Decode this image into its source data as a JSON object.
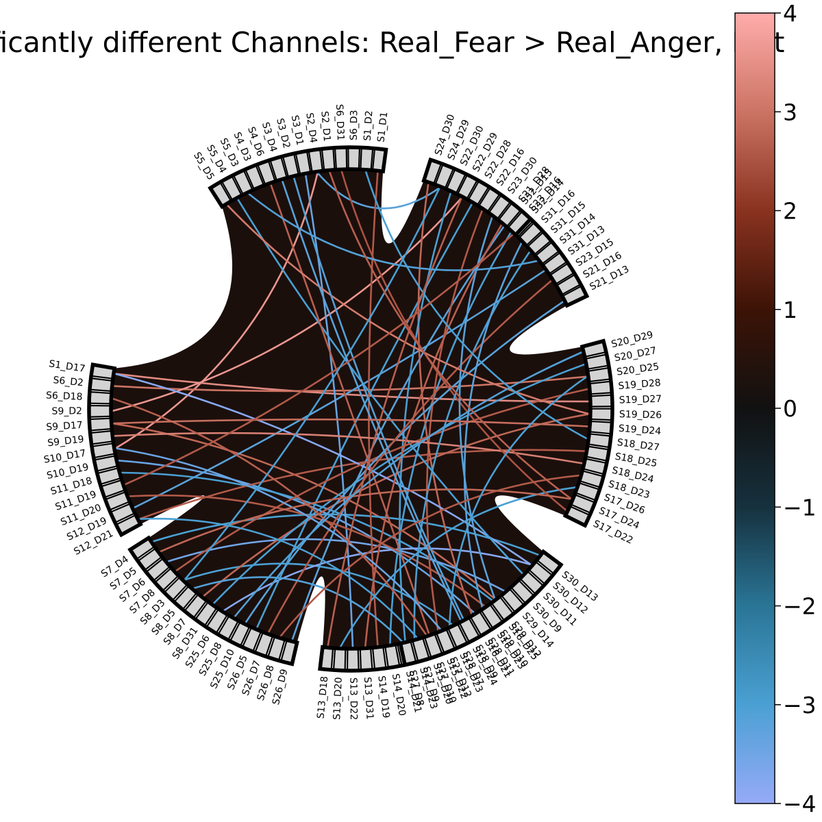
{
  "title": "Significantly different Channels: Real_Fear > Real_Anger, Left",
  "colorbar": {
    "min": -4,
    "max": 4,
    "ticks": [
      4,
      3,
      2,
      1,
      0,
      -1,
      -2,
      -3,
      -4
    ],
    "tick_labels": [
      "4",
      "3",
      "2",
      "1",
      "0",
      "−1",
      "−2",
      "−3",
      "−4"
    ],
    "colormap": [
      {
        "v": -4,
        "color": "#96aaf8"
      },
      {
        "v": -3,
        "color": "#4aa0d3"
      },
      {
        "v": -2,
        "color": "#2a7596"
      },
      {
        "v": -1,
        "color": "#16313e"
      },
      {
        "v": 0,
        "color": "#111111"
      },
      {
        "v": 1,
        "color": "#3c1306"
      },
      {
        "v": 2,
        "color": "#8a3220"
      },
      {
        "v": 3,
        "color": "#cc7464"
      },
      {
        "v": 4,
        "color": "#ffacab"
      }
    ]
  },
  "chart_data": {
    "type": "chord",
    "background_color": "#1b0f0c",
    "groups": [
      {
        "name": "group-1",
        "labels": [
          "S1_D1",
          "S1_D2",
          "S6_D3",
          "S6_D31",
          "S2_D1",
          "S2_D4",
          "S3_D1",
          "S3_D2",
          "S3_D4",
          "S4_D6",
          "S4_D3",
          "S5_D3",
          "S5_D4",
          "S5_D5"
        ]
      },
      {
        "name": "group-2",
        "labels": [
          "S1_D17",
          "S6_D2",
          "S6_D18",
          "S9_D2",
          "S9_D17",
          "S9_D19",
          "S10_D17",
          "S10_D19",
          "S11_D18",
          "S11_D19",
          "S11_D20",
          "S12_D19",
          "S12_D21"
        ]
      },
      {
        "name": "group-3",
        "labels": [
          "S7_D4",
          "S7_D5",
          "S7_D6",
          "S7_D8",
          "S8_D3",
          "S8_D5",
          "S8_D7",
          "S8_D31",
          "S25_D6",
          "S25_D8",
          "S25_D10",
          "S26_D5",
          "S26_D7",
          "S26_D8",
          "S26_D9"
        ]
      },
      {
        "name": "group-4",
        "labels": [
          "S13_D18",
          "S13_D20",
          "S13_D22",
          "S13_D31",
          "S14_D19",
          "S14_D20",
          "S14_D21",
          "S14_D23",
          "S15_D20",
          "S15_D22",
          "S15_D23",
          "S15_D24",
          "S16_D21",
          "S16_D23",
          "S16_D25"
        ]
      },
      {
        "name": "group-5",
        "labels": [
          "S30_D13",
          "S30_D12",
          "S30_D11",
          "S30_D9",
          "S29_D14",
          "S29_D12",
          "S29_D10",
          "S28_D11",
          "S28_D9",
          "S28_D7",
          "S27_D12",
          "S27_D10",
          "S27_D9",
          "S27_D8"
        ]
      },
      {
        "name": "group-6",
        "labels": [
          "S20_D29",
          "S20_D27",
          "S20_D25",
          "S19_D28",
          "S19_D27",
          "S19_D26",
          "S19_D24",
          "S18_D27",
          "S18_D25",
          "S18_D24",
          "S18_D23",
          "S17_D26",
          "S17_D24",
          "S17_D22"
        ]
      },
      {
        "name": "group-7",
        "labels": [
          "S32_D15",
          "S32_D14",
          "S31_D16",
          "S31_D15",
          "S31_D14",
          "S31_D13",
          "S23_D15",
          "S21_D16",
          "S21_D13"
        ]
      },
      {
        "name": "group-8",
        "labels": [
          "S24_D30",
          "S24_D29",
          "S22_D30",
          "S22_D29",
          "S22_D28",
          "S22_D16",
          "S23_D30",
          "S21_D28",
          "S23_D16"
        ]
      }
    ],
    "links": [
      {
        "source": "S2_D4",
        "target": "S10_D17",
        "value": 3.6
      },
      {
        "source": "S2_D4",
        "target": "S24_D29",
        "value": -3.2
      },
      {
        "source": "S1_D17",
        "target": "S19_D27",
        "value": 3.4
      },
      {
        "source": "S6_D2",
        "target": "S20_D25",
        "value": 3.0
      },
      {
        "source": "S9_D2",
        "target": "S22_D29",
        "value": 3.6
      },
      {
        "source": "S9_D17",
        "target": "S29_D12",
        "value": 2.8
      },
      {
        "source": "S10_D19",
        "target": "S28_D11",
        "value": -3.4
      },
      {
        "source": "S11_D18",
        "target": "S16_D25",
        "value": -3.0
      },
      {
        "source": "S12_D19",
        "target": "S31_D13",
        "value": -3.2
      },
      {
        "source": "S12_D21",
        "target": "S18_D25",
        "value": 2.6
      },
      {
        "source": "S7_D4",
        "target": "S30_D13",
        "value": -3.0
      },
      {
        "source": "S7_D6",
        "target": "S29_D14",
        "value": -3.5
      },
      {
        "source": "S8_D3",
        "target": "S28_D7",
        "value": -3.0
      },
      {
        "source": "S8_D7",
        "target": "S19_D26",
        "value": 2.8
      },
      {
        "source": "S25_D6",
        "target": "S30_D12",
        "value": -3.8
      },
      {
        "source": "S26_D5",
        "target": "S22_D28",
        "value": -3.0
      },
      {
        "source": "S26_D9",
        "target": "S32_D15",
        "value": -3.2
      },
      {
        "source": "S13_D22",
        "target": "S3_D1",
        "value": -3.4
      },
      {
        "source": "S14_D20",
        "target": "S23_D16",
        "value": -3.0
      },
      {
        "source": "S15_D22",
        "target": "S22_D16",
        "value": 2.6
      },
      {
        "source": "S16_D21",
        "target": "S24_D30",
        "value": 2.8
      },
      {
        "source": "S14_D19",
        "target": "S1_D1",
        "value": 2.6
      },
      {
        "source": "S30_D12",
        "target": "S1_D17",
        "value": -3.8
      },
      {
        "source": "S30_D11",
        "target": "S5_D4",
        "value": -3.0
      },
      {
        "source": "S29_D10",
        "target": "S11_D20",
        "value": 2.6
      },
      {
        "source": "S27_D10",
        "target": "S4_D6",
        "value": 2.7
      },
      {
        "source": "S27_D8",
        "target": "S22_D30",
        "value": -3.0
      },
      {
        "source": "S20_D27",
        "target": "S8_D31",
        "value": -3.0
      },
      {
        "source": "S19_D28",
        "target": "S7_D8",
        "value": 2.6
      },
      {
        "source": "S18_D24",
        "target": "S9_D19",
        "value": 3.2
      },
      {
        "source": "S17_D26",
        "target": "S13_D20",
        "value": -3.0
      },
      {
        "source": "S17_D22",
        "target": "S6_D31",
        "value": 2.5
      },
      {
        "source": "S21_D13",
        "target": "S25_D10",
        "value": -3.2
      },
      {
        "source": "S31_D15",
        "target": "S14_D23",
        "value": -3.0
      },
      {
        "source": "S23_D15",
        "target": "S26_D7",
        "value": 2.6
      },
      {
        "source": "S21_D28",
        "target": "S13_D31",
        "value": 2.7
      },
      {
        "source": "S23_D30",
        "target": "S29_D12",
        "value": -3.2
      },
      {
        "source": "S5_D5",
        "target": "S19_D26",
        "value": 3.1
      },
      {
        "source": "S3_D4",
        "target": "S15_D24",
        "value": -3.2
      },
      {
        "source": "S1_D2",
        "target": "S18_D27",
        "value": -3.0
      },
      {
        "source": "S6_D18",
        "target": "S15_D20",
        "value": 2.7
      },
      {
        "source": "S10_D17",
        "target": "S27_D12",
        "value": -3.4
      },
      {
        "source": "S7_D5",
        "target": "S17_D24",
        "value": 2.8
      },
      {
        "source": "S8_D5",
        "target": "S14_D21",
        "value": -3.1
      },
      {
        "source": "S25_D8",
        "target": "S20_D29",
        "value": -3.1
      },
      {
        "source": "S16_D23",
        "target": "S31_D16",
        "value": -3.2
      },
      {
        "source": "S13_D18",
        "target": "S22_D29",
        "value": 2.7
      },
      {
        "source": "S28_D9",
        "target": "S3_D2",
        "value": -3.1
      },
      {
        "source": "S19_D24",
        "target": "S9_D17",
        "value": 2.9
      },
      {
        "source": "S31_D14",
        "target": "S5_D3",
        "value": -3.1
      },
      {
        "source": "S32_D14",
        "target": "S11_D19",
        "value": 2.6
      },
      {
        "source": "S24_D29",
        "target": "S8_D3",
        "value": -3.0
      },
      {
        "source": "S18_D23",
        "target": "S26_D8",
        "value": 2.6
      },
      {
        "source": "S27_D9",
        "target": "S12_D21",
        "value": -3.0
      },
      {
        "source": "S17_D24",
        "target": "S2_D1",
        "value": 2.7
      },
      {
        "source": "S20_D25",
        "target": "S15_D23",
        "value": -3.0
      }
    ]
  }
}
